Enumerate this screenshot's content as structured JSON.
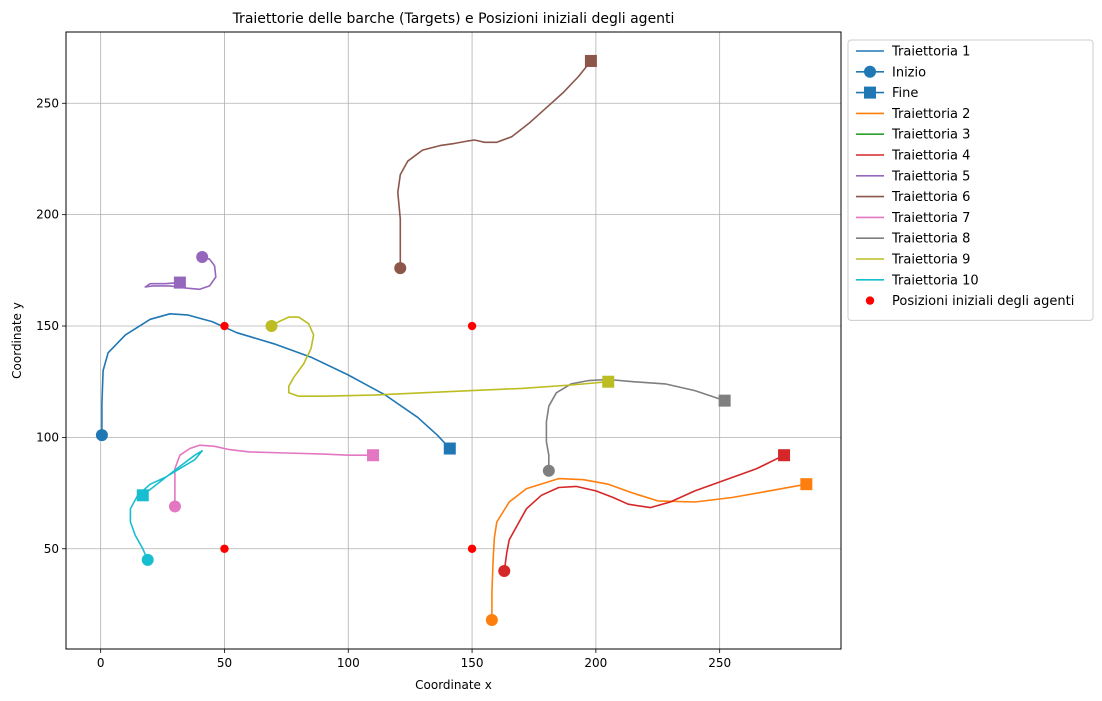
{
  "chart_data": {
    "type": "line",
    "title": "Traiettorie delle barche (Targets) e Posizioni iniziali degli agenti",
    "xlabel": "Coordinate x",
    "ylabel": "Coordinate y",
    "xlim": [
      -14,
      299
    ],
    "ylim": [
      5,
      282
    ],
    "xticks": [
      0,
      50,
      100,
      150,
      200,
      250
    ],
    "yticks": [
      50,
      100,
      150,
      200,
      250
    ],
    "grid": true,
    "legend_position": "outside-right-top",
    "legend": [
      {
        "label": "Traiettoria 1",
        "kind": "line",
        "color": "#1f77b4"
      },
      {
        "label": "Inizio",
        "kind": "line-circle",
        "color": "#1f77b4"
      },
      {
        "label": "Fine",
        "kind": "line-square",
        "color": "#1f77b4"
      },
      {
        "label": "Traiettoria 2",
        "kind": "line",
        "color": "#ff7f0e"
      },
      {
        "label": "Traiettoria 3",
        "kind": "line",
        "color": "#2ca02c"
      },
      {
        "label": "Traiettoria 4",
        "kind": "line",
        "color": "#d62728"
      },
      {
        "label": "Traiettoria 5",
        "kind": "line",
        "color": "#9467bd"
      },
      {
        "label": "Traiettoria 6",
        "kind": "line",
        "color": "#8c564b"
      },
      {
        "label": "Traiettoria 7",
        "kind": "line",
        "color": "#e377c2"
      },
      {
        "label": "Traiettoria 8",
        "kind": "line",
        "color": "#7f7f7f"
      },
      {
        "label": "Traiettoria 9",
        "kind": "line",
        "color": "#bcbd22"
      },
      {
        "label": "Traiettoria 10",
        "kind": "line",
        "color": "#17becf"
      },
      {
        "label": "Posizioni iniziali degli agenti",
        "kind": "dot",
        "color": "#ff0000"
      }
    ],
    "series": [
      {
        "name": "Traiettoria 1",
        "color": "#1f77b4",
        "points": [
          [
            0.5,
            101
          ],
          [
            0.5,
            115
          ],
          [
            1,
            130
          ],
          [
            3,
            138
          ],
          [
            10,
            146
          ],
          [
            20,
            153
          ],
          [
            28,
            155.5
          ],
          [
            35,
            155
          ],
          [
            45,
            152
          ],
          [
            55,
            147
          ],
          [
            70,
            142
          ],
          [
            85,
            136
          ],
          [
            100,
            128
          ],
          [
            115,
            119
          ],
          [
            128,
            109
          ],
          [
            136,
            101
          ],
          [
            141,
            95
          ]
        ]
      },
      {
        "name": "Traiettoria 2",
        "color": "#ff7f0e",
        "points": [
          [
            158,
            18
          ],
          [
            158,
            30
          ],
          [
            158.5,
            45
          ],
          [
            159,
            55
          ],
          [
            160,
            62
          ],
          [
            165,
            71
          ],
          [
            172,
            77
          ],
          [
            185,
            81.5
          ],
          [
            195,
            81
          ],
          [
            205,
            79
          ],
          [
            215,
            75
          ],
          [
            225,
            71.5
          ],
          [
            240,
            71
          ],
          [
            255,
            73
          ],
          [
            270,
            76
          ],
          [
            285,
            79
          ]
        ]
      },
      {
        "name": "Traiettoria 4",
        "color": "#d62728",
        "points": [
          [
            163,
            40
          ],
          [
            164,
            48
          ],
          [
            165,
            54
          ],
          [
            168,
            60
          ],
          [
            172,
            68
          ],
          [
            178,
            74
          ],
          [
            185,
            77.5
          ],
          [
            192,
            78
          ],
          [
            200,
            76
          ],
          [
            207,
            73
          ],
          [
            213,
            70
          ],
          [
            222,
            68.5
          ],
          [
            230,
            71
          ],
          [
            240,
            76
          ],
          [
            255,
            82
          ],
          [
            265,
            86
          ],
          [
            276,
            92
          ]
        ]
      },
      {
        "name": "Traiettoria 5",
        "color": "#9467bd",
        "points": [
          [
            41,
            181
          ],
          [
            44,
            180
          ],
          [
            46,
            177
          ],
          [
            46.5,
            172
          ],
          [
            44,
            168
          ],
          [
            40,
            166.5
          ],
          [
            35,
            167
          ],
          [
            28,
            168
          ],
          [
            21,
            168
          ],
          [
            18,
            167.5
          ],
          [
            20,
            169
          ],
          [
            26,
            169
          ],
          [
            32,
            169.5
          ]
        ]
      },
      {
        "name": "Traiettoria 6",
        "color": "#8c564b",
        "points": [
          [
            121,
            176
          ],
          [
            121,
            185
          ],
          [
            121,
            198
          ],
          [
            120,
            210
          ],
          [
            121,
            218
          ],
          [
            124,
            224
          ],
          [
            130,
            229
          ],
          [
            137,
            231
          ],
          [
            143,
            232
          ],
          [
            148,
            233
          ],
          [
            151,
            233.5
          ],
          [
            153,
            233
          ],
          [
            155,
            232.5
          ],
          [
            160,
            232.5
          ],
          [
            166,
            235
          ],
          [
            173,
            241
          ],
          [
            180,
            248
          ],
          [
            187,
            255
          ],
          [
            193,
            262
          ],
          [
            198,
            269
          ]
        ]
      },
      {
        "name": "Traiettoria 7",
        "color": "#e377c2",
        "points": [
          [
            30,
            69
          ],
          [
            30,
            73
          ],
          [
            30,
            78
          ],
          [
            30,
            86
          ],
          [
            32,
            92
          ],
          [
            36,
            95
          ],
          [
            40,
            96.5
          ],
          [
            46,
            96
          ],
          [
            52,
            94.5
          ],
          [
            60,
            93.5
          ],
          [
            75,
            93
          ],
          [
            90,
            92.5
          ],
          [
            100,
            92
          ],
          [
            110,
            92
          ]
        ]
      },
      {
        "name": "Traiettoria 8",
        "color": "#7f7f7f",
        "points": [
          [
            181,
            85
          ],
          [
            181,
            92
          ],
          [
            180,
            98
          ],
          [
            180,
            107
          ],
          [
            181,
            114
          ],
          [
            184,
            120
          ],
          [
            190,
            124
          ],
          [
            197,
            125.5
          ],
          [
            205,
            126
          ],
          [
            215,
            125
          ],
          [
            228,
            124
          ],
          [
            240,
            121
          ],
          [
            252,
            116.5
          ]
        ]
      },
      {
        "name": "Traiettoria 9",
        "color": "#bcbd22",
        "points": [
          [
            69,
            150
          ],
          [
            72,
            152
          ],
          [
            76,
            154
          ],
          [
            80,
            154
          ],
          [
            84,
            151
          ],
          [
            86,
            146
          ],
          [
            85,
            140
          ],
          [
            82,
            133
          ],
          [
            78,
            127
          ],
          [
            76,
            123
          ],
          [
            76,
            120
          ],
          [
            80,
            118.5
          ],
          [
            90,
            118.5
          ],
          [
            110,
            119
          ],
          [
            130,
            120
          ],
          [
            150,
            121
          ],
          [
            170,
            122
          ],
          [
            190,
            123.5
          ],
          [
            205,
            125
          ]
        ]
      },
      {
        "name": "Traiettoria 10",
        "color": "#17becf",
        "points": [
          [
            19,
            45
          ],
          [
            17,
            50
          ],
          [
            14,
            56
          ],
          [
            12,
            62
          ],
          [
            12,
            68
          ],
          [
            15,
            74
          ],
          [
            20,
            79
          ],
          [
            26,
            82
          ],
          [
            32,
            86
          ],
          [
            38,
            90
          ],
          [
            41,
            94
          ],
          [
            38,
            92
          ],
          [
            32,
            87
          ],
          [
            25,
            81
          ],
          [
            17,
            74
          ]
        ]
      }
    ],
    "agents": [
      [
        50,
        150
      ],
      [
        150,
        150
      ],
      [
        50,
        50
      ],
      [
        150,
        50
      ]
    ]
  }
}
